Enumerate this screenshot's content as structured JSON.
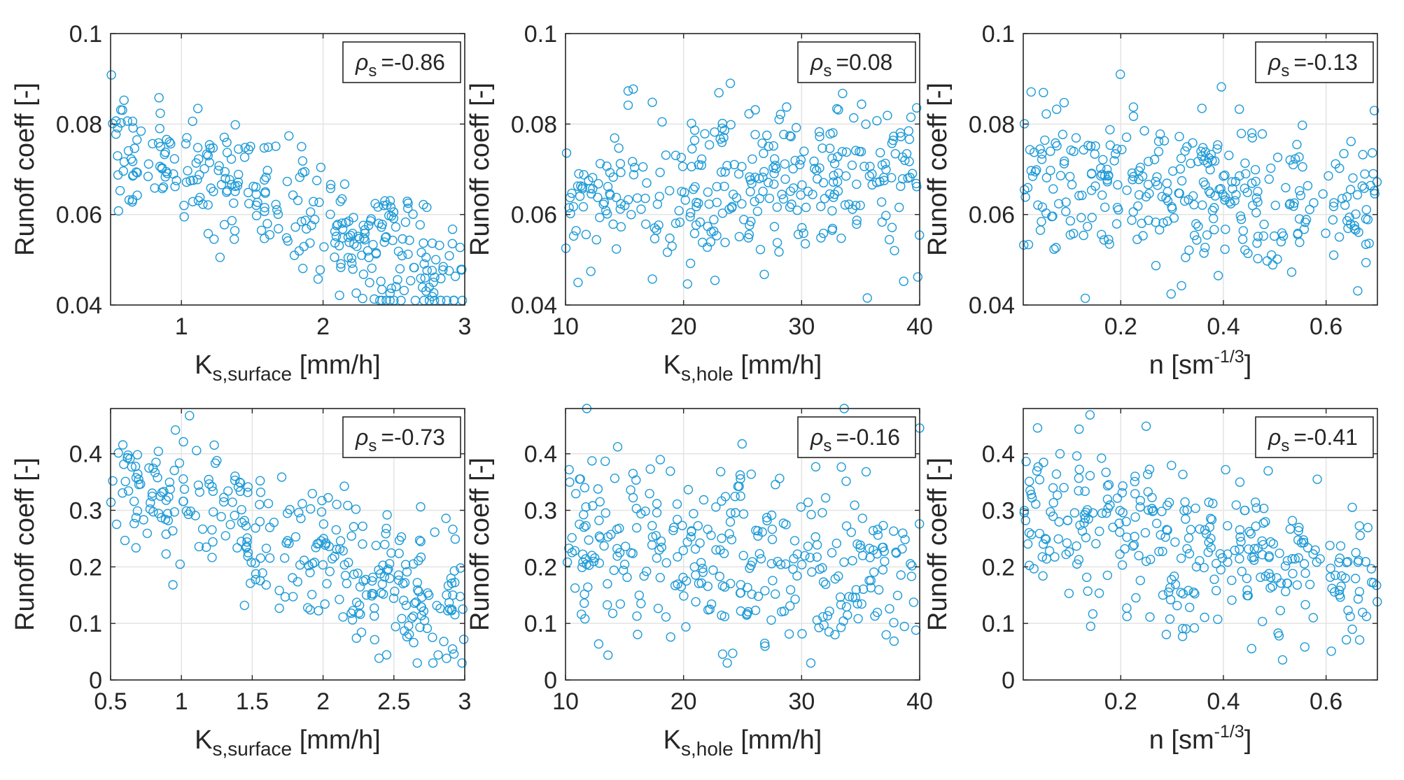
{
  "figure": {
    "marker_color": "#1f9bd7",
    "grid_color": "#e3e3e3"
  },
  "chart_data": [
    {
      "type": "scatter",
      "id": "p11",
      "xlabel": {
        "main": "K",
        "sub": "s,surface",
        "rest": " [mm/h]"
      },
      "ylabel": "Runoff coeff [-]",
      "xlim": [
        0.5,
        3
      ],
      "ylim": [
        0.04,
        0.1
      ],
      "xticks": [
        1,
        2,
        3
      ],
      "yticks": [
        0.04,
        0.06,
        0.08,
        0.1
      ],
      "xtick_labels": [
        "1",
        "2",
        "3"
      ],
      "ytick_labels": [
        "0.04",
        "0.06",
        "0.08",
        "0.1"
      ],
      "annotation": {
        "symbol": "ρ",
        "sub": "s",
        "value": "=-0.86"
      },
      "trend": {
        "a": 0.0855,
        "b": -0.0135,
        "noise": 0.0068,
        "lo": 0.041,
        "hi": 0.091
      },
      "n_points": 320,
      "seed": 11
    },
    {
      "type": "scatter",
      "id": "p12",
      "xlabel": {
        "main": "K",
        "sub": "s,hole",
        "rest": " [mm/h]"
      },
      "ylabel": "Runoff coeff [-]",
      "xlim": [
        10,
        40
      ],
      "ylim": [
        0.04,
        0.1
      ],
      "xticks": [
        10,
        20,
        30,
        40
      ],
      "yticks": [
        0.04,
        0.06,
        0.08,
        0.1
      ],
      "xtick_labels": [
        "10",
        "20",
        "30",
        "40"
      ],
      "ytick_labels": [
        "0.04",
        "0.06",
        "0.08",
        "0.1"
      ],
      "annotation": {
        "symbol": "ρ",
        "sub": "s",
        "value": "=0.08"
      },
      "trend": {
        "a": 0.0645,
        "b": 8e-05,
        "noise": 0.009,
        "lo": 0.041,
        "hi": 0.089
      },
      "n_points": 320,
      "seed": 12
    },
    {
      "type": "scatter",
      "id": "p13",
      "xlabel": {
        "main": "n [sm",
        "sup": "-1/3",
        "rest": "]"
      },
      "ylabel": "Runoff coeff [-]",
      "xlim": [
        0.01,
        0.7
      ],
      "ylim": [
        0.04,
        0.1
      ],
      "xticks": [
        0.2,
        0.4,
        0.6
      ],
      "yticks": [
        0.04,
        0.06,
        0.08,
        0.1
      ],
      "xtick_labels": [
        "0.2",
        "0.4",
        "0.6"
      ],
      "ytick_labels": [
        "0.04",
        "0.06",
        "0.08",
        "0.1"
      ],
      "annotation": {
        "symbol": "ρ",
        "sub": "s",
        "value": "=-0.13"
      },
      "trend": {
        "a": 0.068,
        "b": -0.008,
        "noise": 0.0085,
        "lo": 0.041,
        "hi": 0.091
      },
      "n_points": 320,
      "seed": 13
    },
    {
      "type": "scatter",
      "id": "p21",
      "xlabel": {
        "main": "K",
        "sub": "s,surface",
        "rest": " [mm/h]"
      },
      "ylabel": "Runoff coeff [-]",
      "xlim": [
        0.5,
        3
      ],
      "ylim": [
        0,
        0.48
      ],
      "xticks": [
        0.5,
        1,
        1.5,
        2,
        2.5,
        3
      ],
      "yticks": [
        0,
        0.1,
        0.2,
        0.3,
        0.4
      ],
      "xtick_labels": [
        "0.5",
        "1",
        "1.5",
        "2",
        "2.5",
        "3"
      ],
      "ytick_labels": [
        "0",
        "0.1",
        "0.2",
        "0.3",
        "0.4"
      ],
      "annotation": {
        "symbol": "ρ",
        "sub": "s",
        "value": "=-0.73"
      },
      "trend": {
        "a": 0.42,
        "b": -0.1,
        "noise": 0.06,
        "lo": 0.03,
        "hi": 0.48
      },
      "n_points": 320,
      "seed": 21
    },
    {
      "type": "scatter",
      "id": "p22",
      "xlabel": {
        "main": "K",
        "sub": "s,hole",
        "rest": " [mm/h]"
      },
      "ylabel": "Runoff coeff [-]",
      "xlim": [
        10,
        40
      ],
      "ylim": [
        0,
        0.48
      ],
      "xticks": [
        10,
        20,
        30,
        40
      ],
      "yticks": [
        0,
        0.1,
        0.2,
        0.3,
        0.4
      ],
      "xtick_labels": [
        "10",
        "20",
        "30",
        "40"
      ],
      "ytick_labels": [
        "0",
        "0.1",
        "0.2",
        "0.3",
        "0.4"
      ],
      "annotation": {
        "symbol": "ρ",
        "sub": "s",
        "value": "=-0.16"
      },
      "trend": {
        "a": 0.265,
        "b": -0.0019,
        "noise": 0.085,
        "lo": 0.03,
        "hi": 0.48
      },
      "n_points": 320,
      "seed": 22
    },
    {
      "type": "scatter",
      "id": "p23",
      "xlabel": {
        "main": "n [sm",
        "sup": "-1/3",
        "rest": "]"
      },
      "ylabel": "Runoff coeff [-]",
      "xlim": [
        0.01,
        0.7
      ],
      "ylim": [
        0,
        0.48
      ],
      "xticks": [
        0.2,
        0.4,
        0.6
      ],
      "yticks": [
        0,
        0.1,
        0.2,
        0.3,
        0.4
      ],
      "xtick_labels": [
        "0.2",
        "0.4",
        "0.6"
      ],
      "ytick_labels": [
        "0",
        "0.1",
        "0.2",
        "0.3",
        "0.4"
      ],
      "annotation": {
        "symbol": "ρ",
        "sub": "s",
        "value": "=-0.41"
      },
      "trend": {
        "a": 0.3,
        "b": -0.18,
        "noise": 0.075,
        "lo": 0.03,
        "hi": 0.48
      },
      "n_points": 320,
      "seed": 23
    }
  ]
}
